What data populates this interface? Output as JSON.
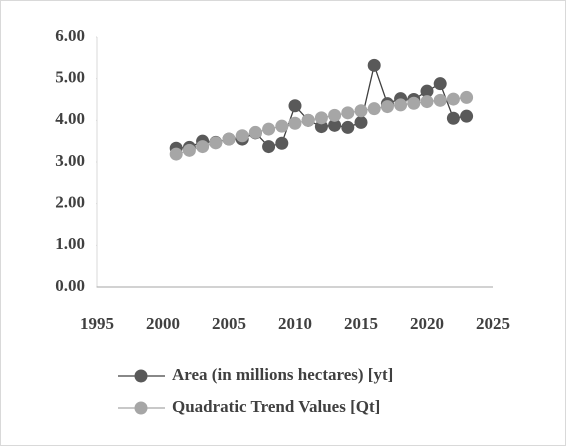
{
  "chart_data": {
    "type": "line",
    "x": [
      2001,
      2002,
      2003,
      2004,
      2005,
      2006,
      2007,
      2008,
      2009,
      2010,
      2011,
      2012,
      2013,
      2014,
      2015,
      2016,
      2017,
      2018,
      2019,
      2020,
      2021,
      2022,
      2023
    ],
    "series": [
      {
        "name": "Area (in millions hectares) [yt]",
        "color": "#595959",
        "values": [
          3.33,
          3.35,
          3.5,
          3.47,
          3.55,
          3.55,
          3.7,
          3.37,
          3.45,
          4.35,
          4.0,
          3.85,
          3.88,
          3.83,
          3.95,
          5.32,
          4.4,
          4.52,
          4.5,
          4.7,
          4.88,
          4.05,
          4.1
        ]
      },
      {
        "name": "Quadratic Trend Values [Qt]",
        "color": "#a6a6a6",
        "values": [
          3.19,
          3.28,
          3.37,
          3.46,
          3.55,
          3.63,
          3.71,
          3.79,
          3.86,
          3.93,
          4.0,
          4.06,
          4.12,
          4.18,
          4.23,
          4.28,
          4.33,
          4.37,
          4.41,
          4.45,
          4.48,
          4.51,
          4.55
        ]
      }
    ],
    "xlim": [
      1995,
      2025
    ],
    "xticks": [
      1995,
      2000,
      2005,
      2010,
      2015,
      2020,
      2025
    ],
    "ylim": [
      0,
      6
    ],
    "yticks": [
      {
        "value": 0,
        "label": "0.00"
      },
      {
        "value": 1,
        "label": "1.00"
      },
      {
        "value": 2,
        "label": "2.00"
      },
      {
        "value": 3,
        "label": "3.00"
      },
      {
        "value": 4,
        "label": "4.00"
      },
      {
        "value": 5,
        "label": "5.00"
      },
      {
        "value": 6,
        "label": "6.00"
      }
    ],
    "legend": "bottom",
    "grid": false
  }
}
